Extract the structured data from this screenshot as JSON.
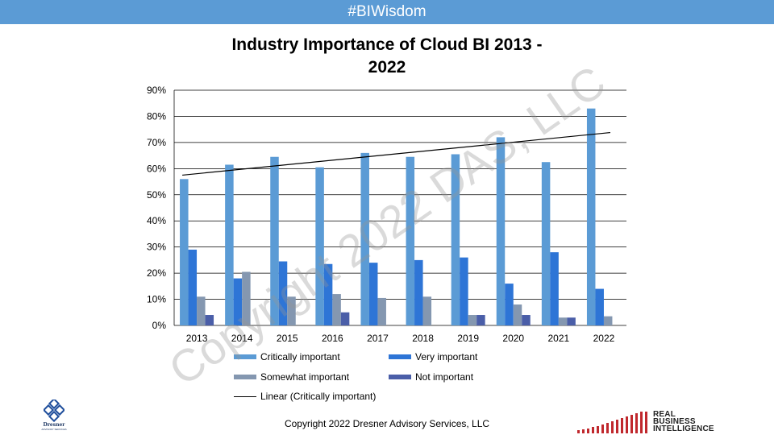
{
  "banner": {
    "text": "#BIWisdom"
  },
  "footer": {
    "text": "Copyright 2022 Dresner Advisory Services, LLC"
  },
  "watermark": {
    "text": "Copyright 2022 DAS, LLC"
  },
  "logos": {
    "left": {
      "name": "Dresner",
      "subtitle": "ADVISORY SERVICES"
    },
    "right": {
      "lines": [
        "REAL",
        "BUSINESS",
        "INTELLIGENCE"
      ]
    }
  },
  "chart_data": {
    "type": "bar",
    "title": "Industry Importance of Cloud BI 2013 - 2022",
    "title_lines": [
      "Industry Importance of Cloud BI 2013 -",
      "2022"
    ],
    "categories": [
      "2013",
      "2014",
      "2015",
      "2016",
      "2017",
      "2018",
      "2019",
      "2020",
      "2021",
      "2022"
    ],
    "series": [
      {
        "name": "Critically important",
        "color": "#5b9bd5",
        "values": [
          56,
          61.5,
          64.5,
          60.5,
          66,
          64.5,
          65.5,
          72,
          62.5,
          83
        ]
      },
      {
        "name": "Very important",
        "color": "#2e75d6",
        "values": [
          29,
          18,
          24.5,
          23.5,
          24,
          25,
          26,
          16,
          28,
          14
        ]
      },
      {
        "name": "Somewhat important",
        "color": "#8497b0",
        "values": [
          11,
          20.5,
          11,
          12,
          10.5,
          11,
          4,
          8,
          3,
          3.5
        ]
      },
      {
        "name": "Not important",
        "color": "#4a5ea8",
        "values": [
          4,
          0,
          0,
          5,
          0,
          0,
          4,
          4,
          3,
          0
        ]
      }
    ],
    "trendline": {
      "name": "Linear (Critically important)",
      "color": "#000000",
      "start": 57.5,
      "end": 73.8
    },
    "yticks": [
      "0%",
      "10%",
      "20%",
      "30%",
      "40%",
      "50%",
      "60%",
      "70%",
      "80%",
      "90%"
    ],
    "ylim": [
      0,
      90
    ],
    "grid": true,
    "legend_position": "bottom"
  }
}
